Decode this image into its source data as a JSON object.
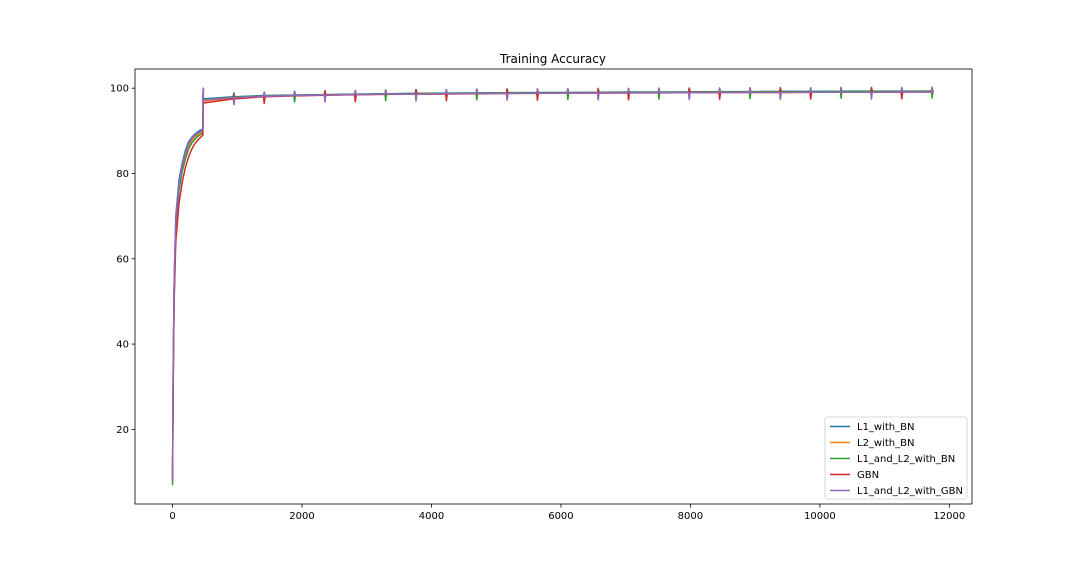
{
  "chart_data": {
    "type": "line",
    "title": "Training Accuracy",
    "xlabel": "",
    "ylabel": "",
    "xlim": [
      -580,
      12350
    ],
    "ylim": [
      2.5,
      104.5
    ],
    "xticks": [
      0,
      2000,
      4000,
      6000,
      8000,
      10000,
      12000
    ],
    "xtick_labels": [
      "0",
      "2000",
      "4000",
      "6000",
      "8000",
      "10000",
      "12000"
    ],
    "yticks": [
      20,
      40,
      60,
      80,
      100
    ],
    "ytick_labels": [
      "20",
      "40",
      "60",
      "80",
      "100"
    ],
    "grid": false,
    "legend_position": "lower-right",
    "epoch_length": 469,
    "epochs": 25,
    "series": [
      {
        "name": "L1_with_BN",
        "color": "#1f77b4",
        "x": [
          0,
          10,
          25,
          50,
          100,
          150,
          200,
          250,
          300,
          350,
          400,
          450,
          468,
          469,
          938,
          1407,
          1876,
          2345,
          2814,
          3283,
          3752,
          4221,
          4690,
          5159,
          5628,
          6097,
          6566,
          7035,
          7504,
          7973,
          8442,
          8911,
          9380,
          9849,
          10318,
          10787,
          11256,
          11725
        ],
        "y": [
          8,
          35,
          55,
          70,
          78.5,
          82.5,
          85.5,
          87.5,
          88.5,
          89.3,
          89.9,
          90.3,
          90.5,
          97.5,
          98.0,
          98.3,
          98.4,
          98.5,
          98.6,
          98.7,
          98.8,
          98.85,
          98.9,
          98.95,
          99.0,
          99.0,
          99.05,
          99.1,
          99.1,
          99.15,
          99.2,
          99.2,
          99.25,
          99.25,
          99.3,
          99.3,
          99.3,
          99.35
        ]
      },
      {
        "name": "L2_with_BN",
        "color": "#ff7f0e",
        "x": [
          0,
          10,
          25,
          50,
          100,
          150,
          200,
          250,
          300,
          350,
          400,
          450,
          468,
          469,
          938,
          1407,
          1876,
          2345,
          2814,
          3283,
          3752,
          4221,
          4690,
          5159,
          5628,
          6097,
          6566,
          7035,
          7504,
          7973,
          8442,
          8911,
          9380,
          9849,
          10318,
          10787,
          11256,
          11725
        ],
        "y": [
          8,
          33,
          53,
          68,
          77,
          81.5,
          84.5,
          86.5,
          87.8,
          88.6,
          89.2,
          89.7,
          89.9,
          97.0,
          97.7,
          98.1,
          98.3,
          98.4,
          98.5,
          98.6,
          98.7,
          98.75,
          98.8,
          98.85,
          98.9,
          98.9,
          98.95,
          99.0,
          99.0,
          99.05,
          99.1,
          99.1,
          99.1,
          99.15,
          99.15,
          99.2,
          99.2,
          99.2
        ]
      },
      {
        "name": "L1_and_L2_with_BN",
        "color": "#2ca02c",
        "x": [
          0,
          10,
          25,
          50,
          100,
          150,
          200,
          250,
          300,
          350,
          400,
          450,
          468,
          469,
          938,
          1407,
          1876,
          2345,
          2814,
          3283,
          3752,
          4221,
          4690,
          5159,
          5628,
          6097,
          6566,
          7035,
          7504,
          7973,
          8442,
          8911,
          9380,
          9849,
          10318,
          10787,
          11256,
          11725
        ],
        "y": [
          7,
          32,
          52,
          67,
          76,
          80.5,
          83.5,
          85.8,
          87.2,
          88.1,
          88.8,
          89.3,
          89.5,
          97.3,
          97.9,
          98.2,
          98.35,
          98.45,
          98.55,
          98.65,
          98.75,
          98.8,
          98.85,
          98.9,
          98.95,
          98.95,
          99.0,
          99.05,
          99.05,
          99.1,
          99.15,
          99.15,
          99.2,
          99.2,
          99.25,
          99.25,
          99.25,
          99.3
        ]
      },
      {
        "name": "GBN",
        "color": "#d62728",
        "x": [
          0,
          10,
          25,
          50,
          100,
          150,
          200,
          250,
          300,
          350,
          400,
          450,
          468,
          469,
          938,
          1407,
          1876,
          2345,
          2814,
          3283,
          3752,
          4221,
          4690,
          5159,
          5628,
          6097,
          6566,
          7035,
          7504,
          7973,
          8442,
          8911,
          9380,
          9849,
          10318,
          10787,
          11256,
          11725
        ],
        "y": [
          9,
          30,
          50,
          64,
          73,
          78,
          81.5,
          84,
          85.8,
          87.1,
          88.0,
          88.7,
          89.0,
          96.5,
          97.5,
          98.0,
          98.2,
          98.35,
          98.45,
          98.55,
          98.6,
          98.65,
          98.7,
          98.75,
          98.8,
          98.85,
          98.85,
          98.9,
          98.9,
          98.95,
          99.0,
          99.0,
          99.0,
          99.05,
          99.05,
          99.05,
          99.1,
          99.1
        ]
      },
      {
        "name": "L1_and_L2_with_GBN",
        "color": "#9467bd",
        "x": [
          0,
          10,
          25,
          50,
          100,
          150,
          200,
          250,
          300,
          350,
          400,
          450,
          468,
          469,
          938,
          1407,
          1876,
          2345,
          2814,
          3283,
          3752,
          4221,
          4690,
          5159,
          5628,
          6097,
          6566,
          7035,
          7504,
          7973,
          8442,
          8911,
          9380,
          9849,
          10318,
          10787,
          11256,
          11725
        ],
        "y": [
          8,
          34,
          54,
          69,
          77.5,
          82,
          85,
          87,
          88.2,
          89.0,
          89.6,
          90.0,
          90.2,
          97.2,
          97.8,
          98.1,
          98.3,
          98.4,
          98.5,
          98.6,
          98.65,
          98.7,
          98.75,
          98.8,
          98.85,
          98.85,
          98.9,
          98.9,
          98.95,
          98.95,
          99.0,
          99.0,
          99.0,
          99.05,
          99.05,
          99.05,
          99.1,
          99.1
        ]
      }
    ]
  }
}
